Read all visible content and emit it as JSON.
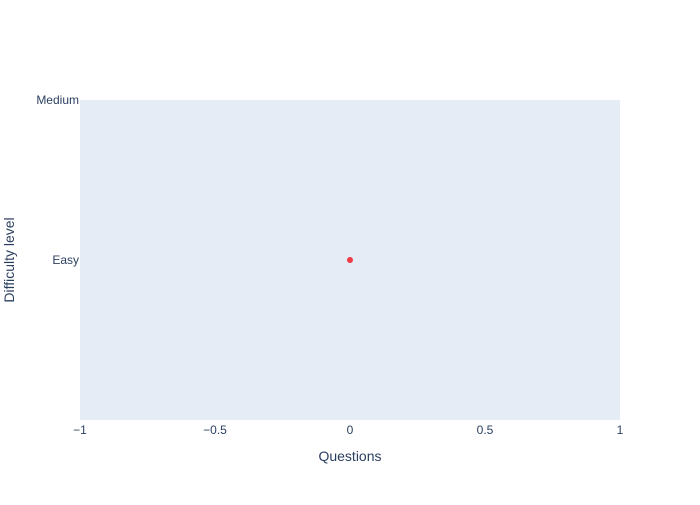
{
  "chart_data": {
    "type": "scatter",
    "title": "",
    "xlabel": "Questions",
    "ylabel": "Difficulty level",
    "xlim": [
      -1,
      1
    ],
    "x_ticks": [
      -1,
      -0.5,
      0,
      0.5,
      1
    ],
    "x_tick_labels": [
      "−1",
      "−0.5",
      "0",
      "0.5",
      "1"
    ],
    "y_categories": [
      "Easy",
      "Medium"
    ],
    "y_tick_labels": [
      "Easy",
      "Medium"
    ],
    "grid": false,
    "legend": "none",
    "series": [
      {
        "points": [
          {
            "x": 0,
            "y": "Easy"
          }
        ],
        "color": "#ef3b48"
      }
    ],
    "colors": {
      "plot_background": "#e5ecf6",
      "text": "#2a3f5f",
      "marker": "#ef3b48"
    }
  }
}
